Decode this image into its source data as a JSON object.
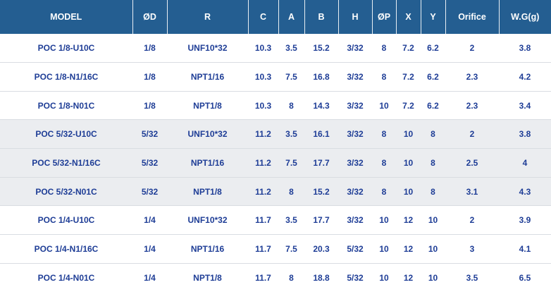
{
  "chart_data": {
    "type": "table",
    "columns": [
      "MODEL",
      "ØD",
      "R",
      "C",
      "A",
      "B",
      "H",
      "ØP",
      "X",
      "Y",
      "Orifice",
      "W.G(g)"
    ],
    "rows": [
      [
        "POC 1/8-U10C",
        "1/8",
        "UNF10*32",
        "10.3",
        "3.5",
        "15.2",
        "3/32",
        "8",
        "7.2",
        "6.2",
        "2",
        "3.8"
      ],
      [
        "POC 1/8-N1/16C",
        "1/8",
        "NPT1/16",
        "10.3",
        "7.5",
        "16.8",
        "3/32",
        "8",
        "7.2",
        "6.2",
        "2.3",
        "4.2"
      ],
      [
        "POC 1/8-N01C",
        "1/8",
        "NPT1/8",
        "10.3",
        "8",
        "14.3",
        "3/32",
        "10",
        "7.2",
        "6.2",
        "2.3",
        "3.4"
      ],
      [
        "POC 5/32-U10C",
        "5/32",
        "UNF10*32",
        "11.2",
        "3.5",
        "16.1",
        "3/32",
        "8",
        "10",
        "8",
        "2",
        "3.8"
      ],
      [
        "POC 5/32-N1/16C",
        "5/32",
        "NPT1/16",
        "11.2",
        "7.5",
        "17.7",
        "3/32",
        "8",
        "10",
        "8",
        "2.5",
        "4"
      ],
      [
        "POC 5/32-N01C",
        "5/32",
        "NPT1/8",
        "11.2",
        "8",
        "15.2",
        "3/32",
        "8",
        "10",
        "8",
        "3.1",
        "4.3"
      ],
      [
        "POC 1/4-U10C",
        "1/4",
        "UNF10*32",
        "11.7",
        "3.5",
        "17.7",
        "3/32",
        "10",
        "12",
        "10",
        "2",
        "3.9"
      ],
      [
        "POC 1/4-N1/16C",
        "1/4",
        "NPT1/16",
        "11.7",
        "7.5",
        "20.3",
        "5/32",
        "10",
        "12",
        "10",
        "3",
        "4.1"
      ],
      [
        "POC 1/4-N01C",
        "1/4",
        "NPT1/8",
        "11.7",
        "8",
        "18.8",
        "5/32",
        "10",
        "12",
        "10",
        "3.5",
        "6.5"
      ]
    ],
    "shaded_row_indices": [
      3,
      4,
      5
    ],
    "title": "",
    "legend": "none",
    "grid": "horizontal-row-separators"
  },
  "colors": {
    "header_bg": "#245e91",
    "header_text": "#ffffff",
    "cell_text": "#1e3d96",
    "row_shade": "#ebedf0",
    "row_border": "#d9dde2"
  }
}
